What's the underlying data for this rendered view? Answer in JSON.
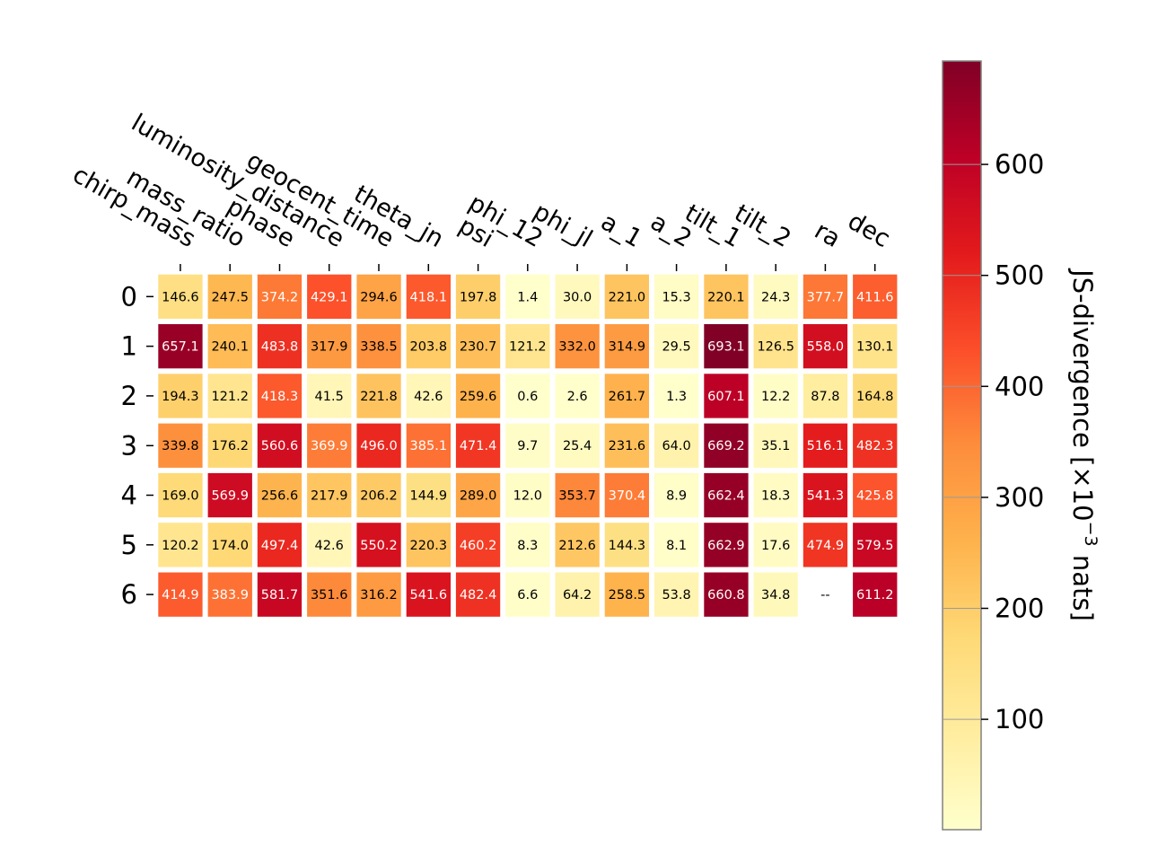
{
  "chart_data": {
    "type": "heatmap",
    "title": "",
    "columns": [
      "chirp_mass",
      "mass_ratio",
      "phase",
      "luminosity_distance",
      "geocent_time",
      "theta_jn",
      "psi",
      "phi_12",
      "phi_jl",
      "a_1",
      "a_2",
      "tilt_1",
      "tilt_2",
      "ra",
      "dec"
    ],
    "rows": [
      "0",
      "1",
      "2",
      "3",
      "4",
      "5",
      "6"
    ],
    "values": [
      [
        146.6,
        247.5,
        374.2,
        429.1,
        294.6,
        418.1,
        197.8,
        1.4,
        30.0,
        221.0,
        15.3,
        220.1,
        24.3,
        377.7,
        411.6
      ],
      [
        657.1,
        240.1,
        483.8,
        317.9,
        338.5,
        203.8,
        230.7,
        121.2,
        332.0,
        314.9,
        29.5,
        693.1,
        126.5,
        558.0,
        130.1
      ],
      [
        194.3,
        121.2,
        418.3,
        41.5,
        221.8,
        42.6,
        259.6,
        0.6,
        2.6,
        261.7,
        1.3,
        607.1,
        12.2,
        87.8,
        164.8
      ],
      [
        339.8,
        176.2,
        560.6,
        369.9,
        496.0,
        385.1,
        471.4,
        9.7,
        25.4,
        231.6,
        64.0,
        669.2,
        35.1,
        516.1,
        482.3
      ],
      [
        169.0,
        569.9,
        256.6,
        217.9,
        206.2,
        144.9,
        289.0,
        12.0,
        353.7,
        370.4,
        8.9,
        662.4,
        18.3,
        541.3,
        425.8
      ],
      [
        120.2,
        174.0,
        497.4,
        42.6,
        550.2,
        220.3,
        460.2,
        8.3,
        212.6,
        144.3,
        8.1,
        662.9,
        17.6,
        474.9,
        579.5
      ],
      [
        414.9,
        383.9,
        581.7,
        351.6,
        316.2,
        541.6,
        482.4,
        6.6,
        64.2,
        258.5,
        53.8,
        660.8,
        34.8,
        null,
        611.2
      ]
    ],
    "cell_labels": [
      [
        "146.6",
        "247.5",
        "374.2",
        "429.1",
        "294.6",
        "418.1",
        "197.8",
        "1.4",
        "30.0",
        "221.0",
        "15.3",
        "220.1",
        "24.3",
        "377.7",
        "411.6"
      ],
      [
        "657.1",
        "240.1",
        "483.8",
        "317.9",
        "338.5",
        "203.8",
        "230.7",
        "121.2",
        "332.0",
        "314.9",
        "29.5",
        "693.1",
        "126.5",
        "558.0",
        "130.1"
      ],
      [
        "194.3",
        "121.2",
        "418.3",
        "41.5",
        "221.8",
        "42.6",
        "259.6",
        "0.6",
        "2.6",
        "261.7",
        "1.3",
        "607.1",
        "12.2",
        "87.8",
        "164.8"
      ],
      [
        "339.8",
        "176.2",
        "560.6",
        "369.9",
        "496.0",
        "385.1",
        "471.4",
        "9.7",
        "25.4",
        "231.6",
        "64.0",
        "669.2",
        "35.1",
        "516.1",
        "482.3"
      ],
      [
        "169.0",
        "569.9",
        "256.6",
        "217.9",
        "206.2",
        "144.9",
        "289.0",
        "12.0",
        "353.7",
        "370.4",
        "8.9",
        "662.4",
        "18.3",
        "541.3",
        "425.8"
      ],
      [
        "120.2",
        "174.0",
        "497.4",
        "42.6",
        "550.2",
        "220.3",
        "460.2",
        "8.3",
        "212.6",
        "144.3",
        "8.1",
        "662.9",
        "17.6",
        "474.9",
        "579.5"
      ],
      [
        "414.9",
        "383.9",
        "581.7",
        "351.6",
        "316.2",
        "541.6",
        "482.4",
        "6.6",
        "64.2",
        "258.5",
        "53.8",
        "660.8",
        "34.8",
        "--",
        "611.2"
      ]
    ],
    "colormap": "YlOrRd",
    "colorbar": {
      "label_prefix": "JS-divergence [×10",
      "label_exponent": "−3",
      "label_suffix": " nats]",
      "range": [
        0.6,
        693.1
      ],
      "ticks": [
        100,
        200,
        300,
        400,
        500,
        600
      ],
      "tick_labels": [
        "100",
        "200",
        "300",
        "400",
        "500",
        "600"
      ]
    },
    "grid": false,
    "legend": "colorbar-right"
  }
}
